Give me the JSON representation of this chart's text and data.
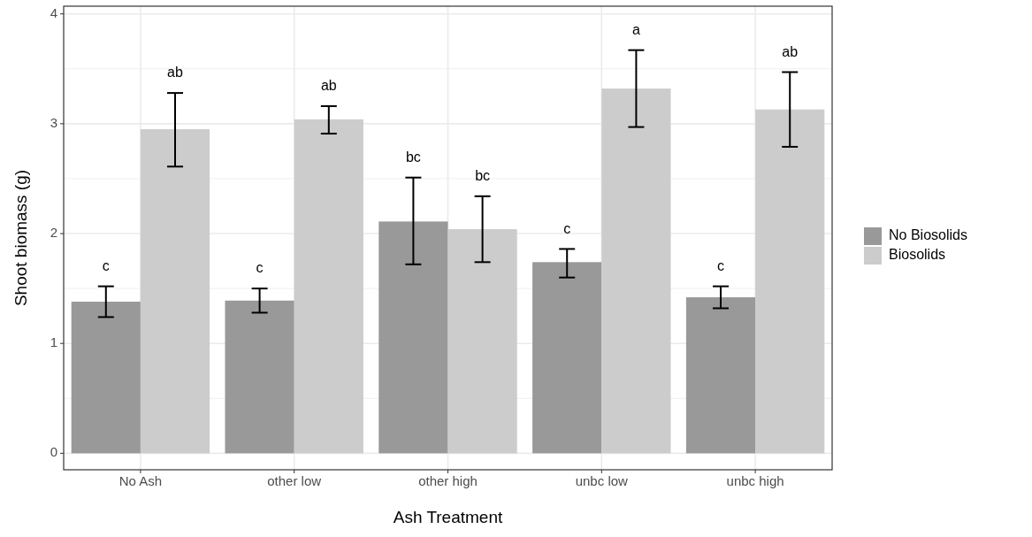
{
  "chart_data": {
    "type": "bar",
    "xlabel": "Ash Treatment",
    "ylabel": "Shoot biomass (g)",
    "categories": [
      "No Ash",
      "other low",
      "other high",
      "unbc low",
      "unbc high"
    ],
    "series": [
      {
        "name": "No Biosolids",
        "color": "#999999",
        "values": [
          1.38,
          1.39,
          2.11,
          1.74,
          1.42
        ],
        "errors": [
          [
            1.24,
            1.52
          ],
          [
            1.28,
            1.5
          ],
          [
            1.72,
            2.51
          ],
          [
            1.6,
            1.86
          ],
          [
            1.32,
            1.52
          ]
        ]
      },
      {
        "name": "Biosolids",
        "color": "#cccccc",
        "values": [
          2.95,
          3.04,
          2.04,
          3.32,
          3.13
        ],
        "errors": [
          [
            2.61,
            3.28
          ],
          [
            2.91,
            3.16
          ],
          [
            1.74,
            2.34
          ],
          [
            2.97,
            3.67
          ],
          [
            2.79,
            3.47
          ]
        ]
      }
    ],
    "annotations": [
      "c",
      "ab",
      "c",
      "ab",
      "bc",
      "bc",
      "c",
      "a",
      "c",
      "ab"
    ],
    "ylim": [
      -0.15,
      4.07
    ],
    "yticks": [
      0,
      1,
      2,
      3,
      4
    ],
    "grid": true,
    "legend": "right"
  }
}
